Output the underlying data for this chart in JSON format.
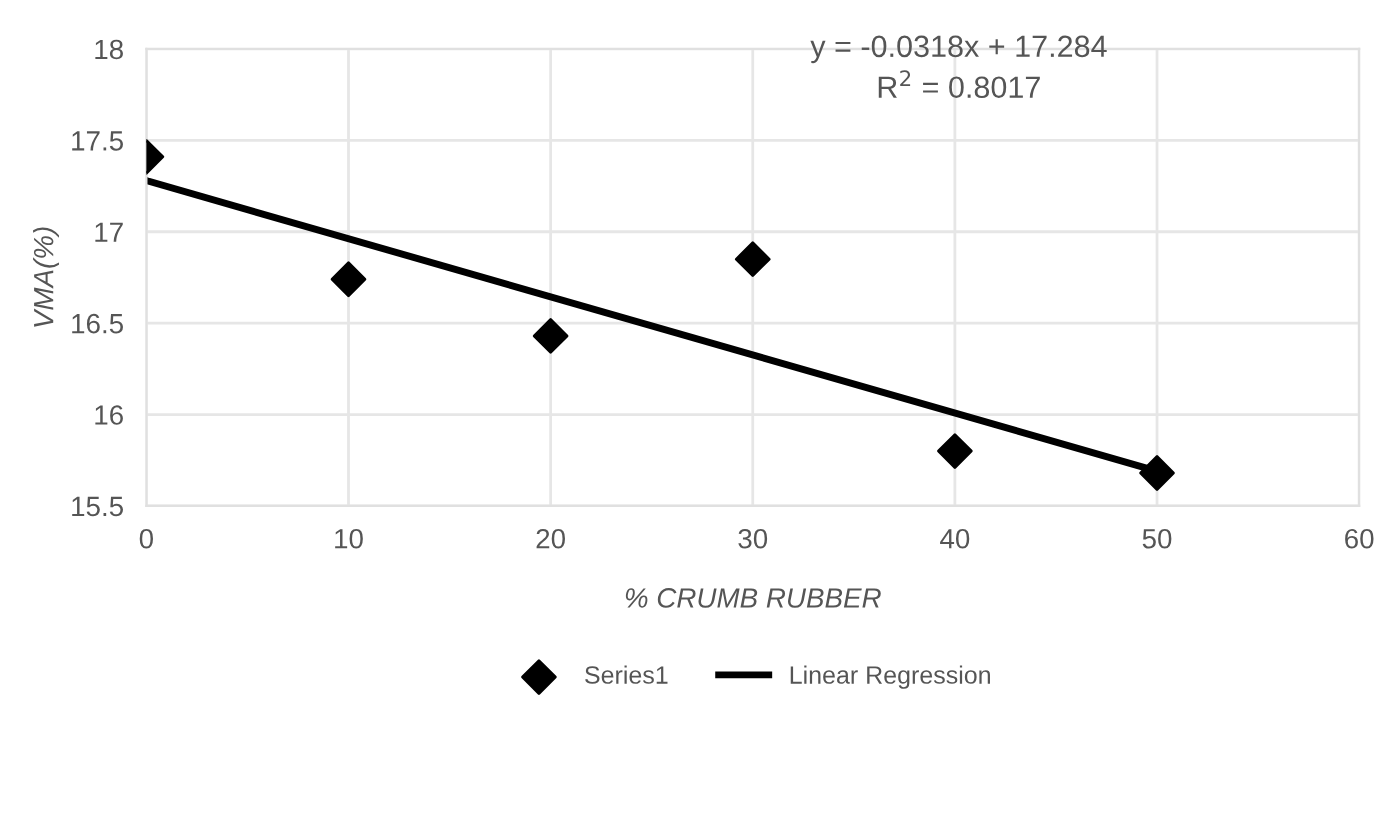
{
  "chart_data": {
    "type": "scatter",
    "xlabel": "% CRUMB RUBBER",
    "ylabel": "VMA(%)",
    "xlim": [
      0,
      60
    ],
    "xticks": [
      0,
      10,
      20,
      30,
      40,
      50,
      60
    ],
    "ylim": [
      15.5,
      18
    ],
    "yticks": [
      15.5,
      16,
      16.5,
      17,
      17.5,
      18
    ],
    "grid": true,
    "legend": "bottom",
    "marker": "diamond",
    "series": [
      {
        "name": "Series1",
        "color": "#000000",
        "x": [
          0,
          10,
          20,
          30,
          40,
          50
        ],
        "values": [
          17.41,
          16.74,
          16.43,
          16.85,
          15.8,
          15.68
        ]
      },
      {
        "name": "Linear Regression",
        "type": "line",
        "color": "#000000",
        "line_style": "solid",
        "marker": "none",
        "x": [
          0,
          50
        ],
        "values": [
          17.28,
          15.69
        ]
      }
    ],
    "annotations": [
      "y = -0.0318x + 17.284",
      "R$^{2}$ = 0.8017"
    ]
  }
}
